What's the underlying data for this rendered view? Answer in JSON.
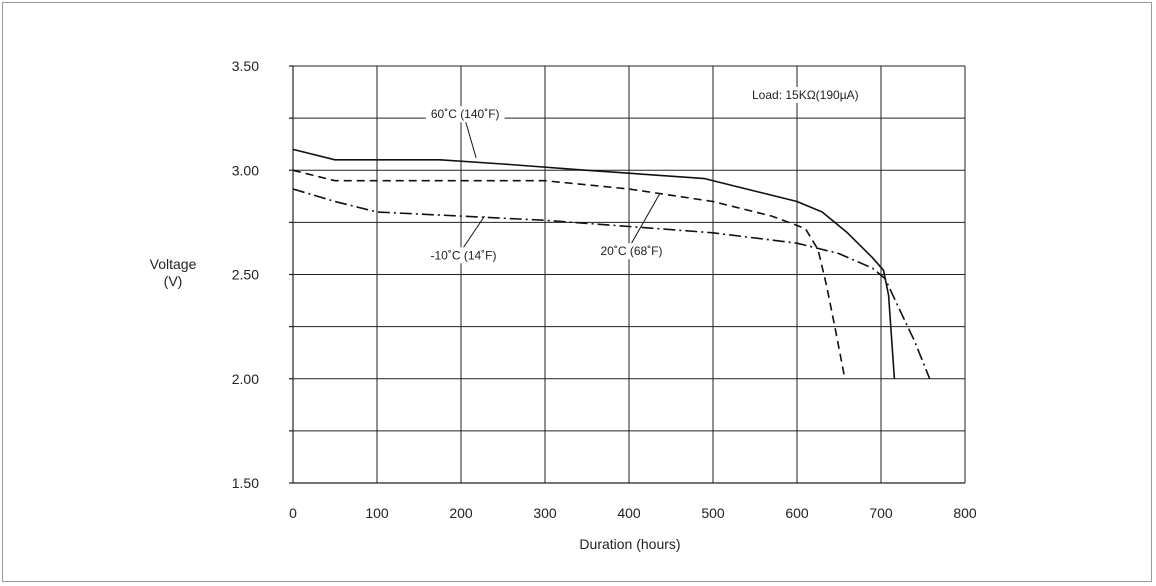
{
  "chart_data": {
    "type": "line",
    "xlabel": "Duration (hours)",
    "ylabel_line1": "Voltage",
    "ylabel_line2": "(V)",
    "xlim": [
      0,
      800
    ],
    "ylim": [
      1.5,
      3.5
    ],
    "x_ticks": [
      0,
      100,
      200,
      300,
      400,
      500,
      600,
      700,
      800
    ],
    "x_tick_labels": [
      "0",
      "100",
      "200",
      "300",
      "400",
      "500",
      "600",
      "700",
      "800"
    ],
    "y_ticks": [
      1.5,
      2.0,
      2.5,
      3.0,
      3.5
    ],
    "y_tick_labels": [
      "1.50",
      "2.00",
      "2.50",
      "3.00",
      "3.50"
    ],
    "y_minor_ticks": [
      1.75,
      2.25,
      2.75,
      3.25
    ],
    "grid": true,
    "annotation": "Load: 15KΩ(190µA)",
    "series": [
      {
        "name": "60˚C (140˚F)",
        "style": "solid",
        "x": [
          0,
          50,
          100,
          175,
          250,
          350,
          420,
          490,
          550,
          600,
          630,
          660,
          690,
          703,
          709,
          716
        ],
        "y": [
          3.1,
          3.05,
          3.05,
          3.05,
          3.03,
          3.0,
          2.98,
          2.96,
          2.9,
          2.85,
          2.8,
          2.7,
          2.58,
          2.52,
          2.4,
          2.0
        ]
      },
      {
        "name": "20˚C (68˚F)",
        "style": "dashed",
        "x": [
          0,
          50,
          100,
          200,
          300,
          400,
          500,
          570,
          610,
          625,
          635,
          645,
          657
        ],
        "y": [
          3.0,
          2.95,
          2.95,
          2.95,
          2.95,
          2.91,
          2.85,
          2.78,
          2.72,
          2.62,
          2.45,
          2.25,
          2.0
        ]
      },
      {
        "name": "-10˚C (14˚F)",
        "style": "dashdot",
        "x": [
          0,
          50,
          100,
          200,
          300,
          400,
          500,
          600,
          650,
          690,
          705,
          720,
          740,
          758
        ],
        "y": [
          2.91,
          2.85,
          2.8,
          2.78,
          2.76,
          2.73,
          2.7,
          2.65,
          2.6,
          2.53,
          2.48,
          2.35,
          2.18,
          2.0
        ]
      }
    ],
    "callouts": [
      {
        "label": "60˚C (140˚F)",
        "from": [
          205,
          3.24
        ],
        "to": [
          218,
          3.06
        ]
      },
      {
        "label": "20˚C (68˚F)",
        "from": [
          403,
          2.65
        ],
        "to": [
          437,
          2.89
        ]
      },
      {
        "label": "-10˚C (14˚F)",
        "from": [
          203,
          2.63
        ],
        "to": [
          228,
          2.78
        ]
      }
    ]
  }
}
